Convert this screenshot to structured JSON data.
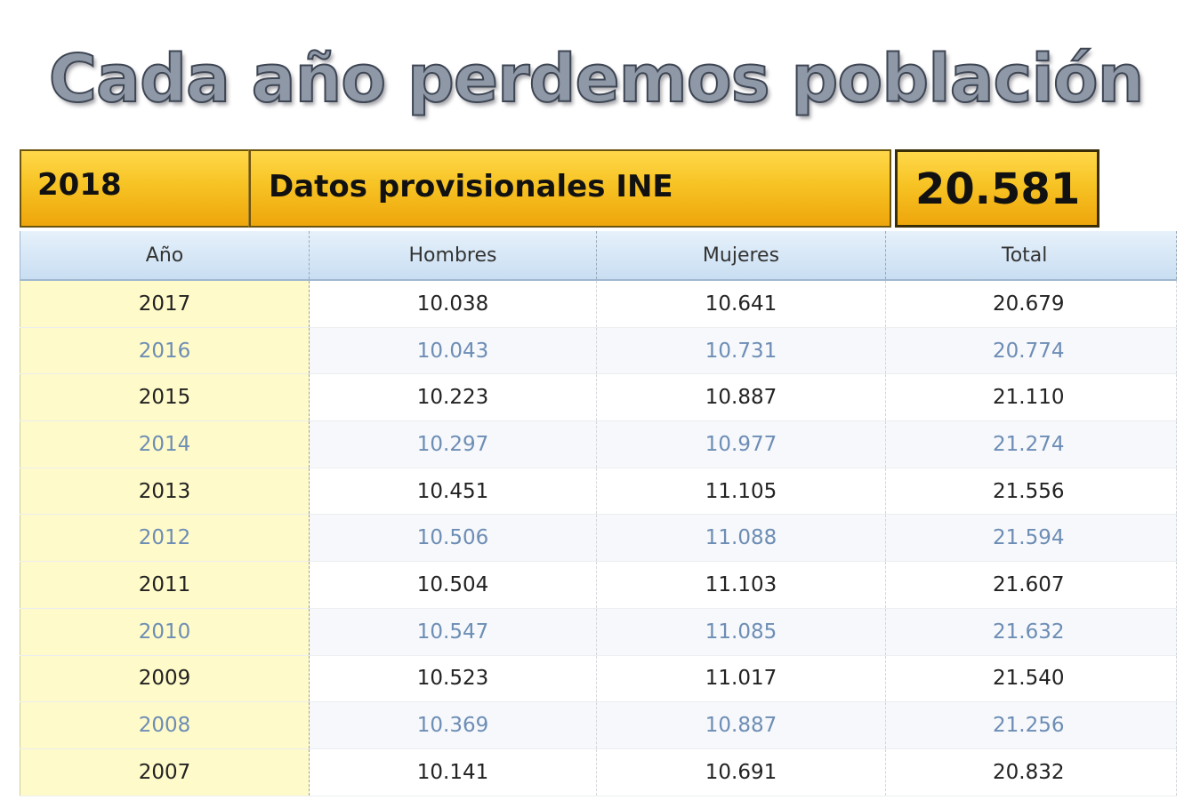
{
  "title": "Cada año perdemos población",
  "header": {
    "year": "2018",
    "source": "Datos provisionales INE",
    "total": "20.581"
  },
  "columns": [
    "Año",
    "Hombres",
    "Mujeres",
    "Total"
  ],
  "rows": [
    {
      "year": "2017",
      "men": "10.038",
      "women": "10.641",
      "total": "20.679"
    },
    {
      "year": "2016",
      "men": "10.043",
      "women": "10.731",
      "total": "20.774"
    },
    {
      "year": "2015",
      "men": "10.223",
      "women": "10.887",
      "total": "21.110"
    },
    {
      "year": "2014",
      "men": "10.297",
      "women": "10.977",
      "total": "21.274"
    },
    {
      "year": "2013",
      "men": "10.451",
      "women": "11.105",
      "total": "21.556"
    },
    {
      "year": "2012",
      "men": "10.506",
      "women": "11.088",
      "total": "21.594"
    },
    {
      "year": "2011",
      "men": "10.504",
      "women": "11.103",
      "total": "21.607"
    },
    {
      "year": "2010",
      "men": "10.547",
      "women": "11.085",
      "total": "21.632"
    },
    {
      "year": "2009",
      "men": "10.523",
      "women": "11.017",
      "total": "21.540"
    },
    {
      "year": "2008",
      "men": "10.369",
      "women": "10.887",
      "total": "21.256"
    },
    {
      "year": "2007",
      "men": "10.141",
      "women": "10.691",
      "total": "20.832"
    }
  ],
  "colors": {
    "header_gold": "#f7c324",
    "year_column": "#fffac9",
    "alt_row_text": "#6d8db5",
    "column_header": "#c9def2"
  }
}
